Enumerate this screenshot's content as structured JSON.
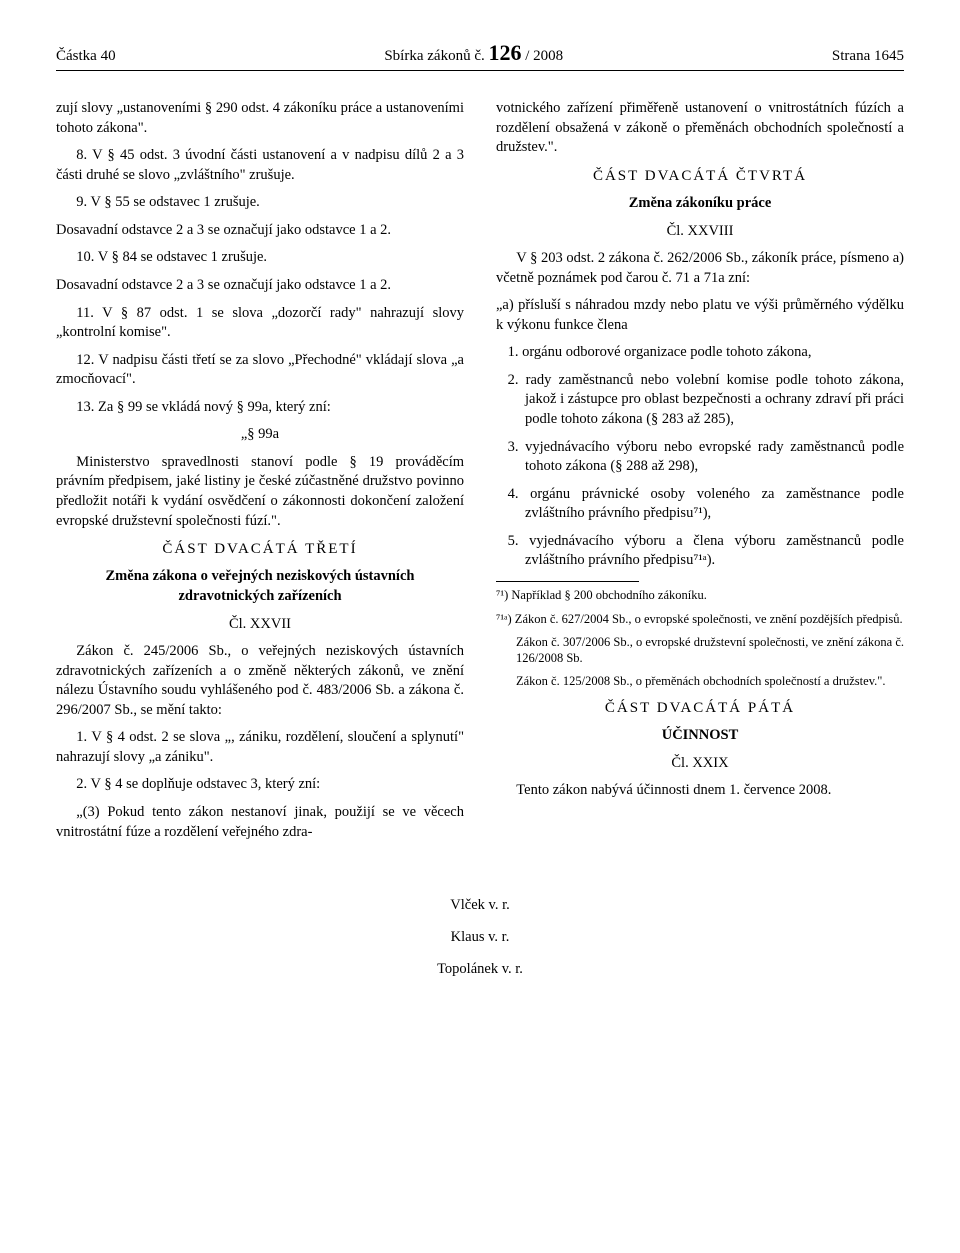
{
  "header": {
    "left": "Částka 40",
    "center_prefix": "Sbírka zákonů č. ",
    "center_num": "126",
    "center_suffix": " / 2008",
    "right": "Strana 1645"
  },
  "left_col": {
    "p1": "zují slovy „ustanoveními § 290 odst. 4 zákoníku práce a ustanoveními tohoto zákona\".",
    "p2": "8. V § 45 odst. 3 úvodní části ustanovení a v nadpisu dílů 2 a 3 části druhé se slovo „zvláštního\" zrušuje.",
    "p3": "9. V § 55 se odstavec 1 zrušuje.",
    "p4": "Dosavadní odstavce 2 a 3 se označují jako odstavce 1 a 2.",
    "p5": "10. V § 84 se odstavec 1 zrušuje.",
    "p6": "Dosavadní odstavce 2 a 3 se označují jako odstavce 1 a 2.",
    "p7": "11. V § 87 odst. 1 se slova „dozorčí rady\" nahrazují slovy „kontrolní komise\".",
    "p8": "12. V nadpisu části třetí se za slovo „Přechodné\" vkládají slova „a zmocňovací\".",
    "p9": "13. Za § 99 se vkládá nový § 99a, který zní:",
    "p10": "„§ 99a",
    "p11": "Ministerstvo spravedlnosti stanoví podle § 19 prováděcím právním předpisem, jaké listiny je české zúčastněné družstvo povinno předložit notáři k vydání osvědčení o zákonnosti dokončení založení evropské družstevní společnosti fúzí.\".",
    "part23_title": "ČÁST DVACÁTÁ TŘETÍ",
    "part23_sub": "Změna zákona o veřejných neziskových ústavních zdravotnických zařízeních",
    "art27": "Čl. XXVII",
    "p12": "Zákon č. 245/2006 Sb., o veřejných neziskových ústavních zdravotnických zařízeních a o změně některých zákonů, ve znění nálezu Ústavního soudu vyhlášeného pod č. 483/2006 Sb. a zákona č. 296/2007 Sb., se mění takto:",
    "p13": "1. V § 4 odst. 2 se slova „, zániku, rozdělení, sloučení a splynutí\" nahrazují slovy „a zániku\".",
    "p14": "2. V § 4 se doplňuje odstavec 3, který zní:",
    "p15": "„(3) Pokud tento zákon nestanoví jinak, použijí se ve věcech vnitrostátní fúze a rozdělení veřejného zdra-"
  },
  "right_col": {
    "p1": "votnického zařízení přiměřeně ustanovení o vnitrostátních fúzích a rozdělení obsažená v zákoně o přeměnách obchodních společností a družstev.\".",
    "part24_title": "ČÁST DVACÁTÁ ČTVRTÁ",
    "part24_sub": "Změna zákoníku práce",
    "art28": "Čl. XXVIII",
    "p2": "V § 203 odst. 2 zákona č. 262/2006 Sb., zákoník práce, písmeno a) včetně poznámek pod čarou č. 71 a 71a zní:",
    "p3": "„a) přísluší s náhradou mzdy nebo platu ve výši průměrného výdělku k výkonu funkce člena",
    "li1": "1. orgánu odborové organizace podle tohoto zákona,",
    "li2": "2. rady zaměstnanců nebo volební komise podle tohoto zákona, jakož i zástupce pro oblast bezpečnosti a ochrany zdraví při práci podle tohoto zákona (§ 283 až 285),",
    "li3": "3. vyjednávacího výboru nebo evropské rady zaměstnanců podle tohoto zákona (§ 288 až 298),",
    "li4": "4. orgánu právnické osoby voleného za zaměstnance podle zvláštního právního předpisu⁷¹),",
    "li5": "5. vyjednávacího výboru a člena výboru zaměstnanců podle zvláštního právního předpisu⁷¹ᵃ).",
    "fn1": "⁷¹) Například § 200 obchodního zákoníku.",
    "fn2": "⁷¹ᵃ) Zákon č. 627/2004 Sb., o evropské společnosti, ve znění pozdějších předpisů.",
    "fn3": "Zákon č. 307/2006 Sb., o evropské družstevní společnosti, ve znění zákona č. 126/2008 Sb.",
    "fn4": "Zákon č. 125/2008 Sb., o přeměnách obchodních společností a družstev.\".",
    "part25_title": "ČÁST DVACÁTÁ PÁTÁ",
    "part25_sub": "ÚČINNOST",
    "art29": "Čl. XXIX",
    "p_eff": "Tento zákon nabývá účinnosti dnem 1. července 2008."
  },
  "signatures": {
    "s1": "Vlček v. r.",
    "s2": "Klaus v. r.",
    "s3": "Topolánek v. r."
  }
}
